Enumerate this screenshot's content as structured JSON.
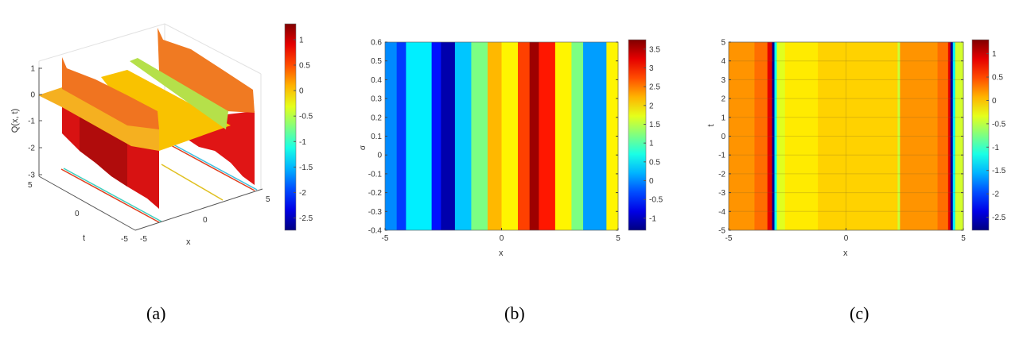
{
  "chart_data": [
    {
      "type": "surface",
      "panel_label": "(a)",
      "zlabel": "Q(x, t)",
      "xlabel": "x",
      "ylabel": "t",
      "xticks": [
        "-5",
        "0",
        "5"
      ],
      "yticks": [
        "5",
        "0",
        "-5"
      ],
      "zticks": [
        "1",
        "0",
        "-1",
        "-2",
        "-3"
      ],
      "xlim": [
        -5,
        5
      ],
      "ylim": [
        -5,
        5
      ],
      "zlim": [
        -3,
        1.3
      ],
      "colorbar": {
        "range": [
          -2.74,
          1.31
        ],
        "ticks": [
          1,
          0.5,
          0,
          -0.5,
          -1,
          -1.5,
          -2,
          -2.5
        ],
        "tick_labels": [
          "1",
          "0.5",
          "0",
          "-0.5",
          "-1",
          "-1.5",
          "-2",
          "-2.5"
        ]
      }
    },
    {
      "type": "heatmap",
      "panel_label": "(b)",
      "xlabel": "x",
      "ylabel": "σ",
      "xlim": [
        -5,
        5
      ],
      "ylim": [
        -0.4,
        0.6
      ],
      "xticks": [
        -5,
        0,
        5
      ],
      "xtick_labels": [
        "-5",
        "0",
        "5"
      ],
      "yticks": [
        0.6,
        0.5,
        0.4,
        0.3,
        0.2,
        0.1,
        0,
        -0.1,
        -0.2,
        -0.3,
        -0.4
      ],
      "ytick_labels": [
        "0.6",
        "0.5",
        "0.4",
        "0.3",
        "0.2",
        "0.1",
        "0",
        "-0.1",
        "-0.2",
        "-0.3",
        "-0.4"
      ],
      "stripes": [
        {
          "x0": -5,
          "x1": -4.5,
          "v": 0.0
        },
        {
          "x0": -4.5,
          "x1": -4.1,
          "v": -0.4
        },
        {
          "x0": -4.1,
          "x1": -3.0,
          "v": 0.5
        },
        {
          "x0": -3.0,
          "x1": -2.6,
          "v": -0.6
        },
        {
          "x0": -2.6,
          "x1": -2.0,
          "v": -1.1
        },
        {
          "x0": -2.0,
          "x1": -1.3,
          "v": 0.3
        },
        {
          "x0": -1.3,
          "x1": -0.6,
          "v": 1.2
        },
        {
          "x0": -0.6,
          "x1": 0.0,
          "v": 2.2
        },
        {
          "x0": 0.0,
          "x1": 0.7,
          "v": 1.9
        },
        {
          "x0": 0.7,
          "x1": 1.2,
          "v": 2.8
        },
        {
          "x0": 1.2,
          "x1": 1.6,
          "v": 3.6
        },
        {
          "x0": 1.6,
          "x1": 2.3,
          "v": 3.0
        },
        {
          "x0": 2.3,
          "x1": 3.0,
          "v": 1.9
        },
        {
          "x0": 3.0,
          "x1": 3.5,
          "v": 1.2
        },
        {
          "x0": 3.5,
          "x1": 4.5,
          "v": 0.1
        },
        {
          "x0": 4.5,
          "x1": 5,
          "v": 1.9
        }
      ],
      "colorbar": {
        "range": [
          -1.32,
          3.75
        ],
        "ticks": [
          3.5,
          3,
          2.5,
          2,
          1.5,
          1,
          0.5,
          0,
          -0.5,
          -1
        ],
        "tick_labels": [
          "3.5",
          "3",
          "2.5",
          "2",
          "1.5",
          "1",
          "0.5",
          "0",
          "-0.5",
          "-1"
        ]
      }
    },
    {
      "type": "heatmap",
      "panel_label": "(c)",
      "xlabel": "x",
      "ylabel": "t",
      "xlim": [
        -5,
        5
      ],
      "ylim": [
        -5,
        5
      ],
      "grid": true,
      "xticks": [
        -5,
        0,
        5
      ],
      "xtick_labels": [
        "-5",
        "0",
        "5"
      ],
      "yticks": [
        5,
        4,
        3,
        2,
        1,
        0,
        -1,
        -2,
        -3,
        -4,
        -5
      ],
      "ytick_labels": [
        "5",
        "4",
        "3",
        "2",
        "1",
        "0",
        "-1",
        "-2",
        "-3",
        "-4",
        "-5"
      ],
      "stripes": [
        {
          "x0": -5,
          "x1": -3.9,
          "v": 0.2
        },
        {
          "x0": -3.9,
          "x1": -3.35,
          "v": 0.35
        },
        {
          "x0": -3.35,
          "x1": -3.15,
          "v": 0.9
        },
        {
          "x0": -3.15,
          "x1": -3.05,
          "v": -2.7
        },
        {
          "x0": -3.05,
          "x1": -2.95,
          "v": -1.2
        },
        {
          "x0": -2.95,
          "x1": -2.6,
          "v": -0.35
        },
        {
          "x0": -2.6,
          "x1": -1.2,
          "v": -0.15
        },
        {
          "x0": -1.2,
          "x1": 2.2,
          "v": -0.05
        },
        {
          "x0": 2.2,
          "x1": 2.3,
          "v": -0.45
        },
        {
          "x0": 2.3,
          "x1": 3.9,
          "v": 0.2
        },
        {
          "x0": 3.9,
          "x1": 4.35,
          "v": 0.35
        },
        {
          "x0": 4.35,
          "x1": 4.45,
          "v": 0.9
        },
        {
          "x0": 4.45,
          "x1": 4.55,
          "v": -2.7
        },
        {
          "x0": 4.55,
          "x1": 4.65,
          "v": -1.3
        },
        {
          "x0": 4.65,
          "x1": 5,
          "v": -0.4
        }
      ],
      "colorbar": {
        "range": [
          -2.78,
          1.3
        ],
        "ticks": [
          1,
          0.5,
          0,
          -0.5,
          -1,
          -1.5,
          -2,
          -2.5
        ],
        "tick_labels": [
          "1",
          "0.5",
          "0",
          "-0.5",
          "-1",
          "-1.5",
          "-2",
          "-2.5"
        ]
      }
    }
  ]
}
